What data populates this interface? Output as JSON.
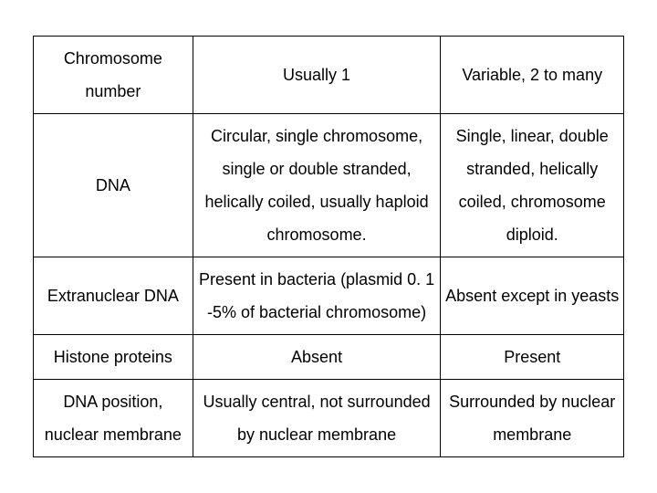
{
  "table": {
    "rows": [
      {
        "c1": "Chromosome number",
        "c2": "Usually 1",
        "c3": "Variable, 2 to many"
      },
      {
        "c1": "DNA",
        "c2": "Circular, single chromosome, single or double stranded, helically coiled, usually haploid chromosome.",
        "c3": "Single, linear, double stranded, helically coiled, chromosome diploid."
      },
      {
        "c1": "Extranuclear DNA",
        "c2": "Present in bacteria (plasmid 0. 1 -5% of bacterial chromosome)",
        "c3": "Absent except in yeasts"
      },
      {
        "c1": "Histone proteins",
        "c2": "Absent",
        "c3": "Present"
      },
      {
        "c1": "DNA position, nuclear membrane",
        "c2": "Usually central, not surrounded by nuclear membrane",
        "c3": "Surrounded by nuclear membrane"
      }
    ],
    "border_color": "#000000",
    "background_color": "#ffffff",
    "font_size": 18,
    "col_widths_pct": [
      27,
      42,
      31
    ]
  }
}
